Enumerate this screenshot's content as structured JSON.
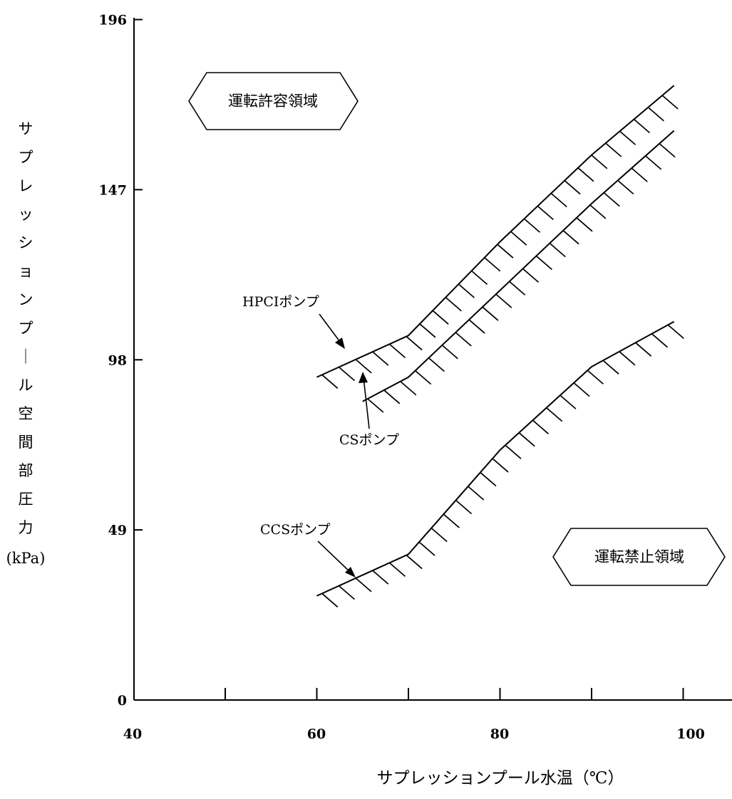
{
  "chart_data": {
    "type": "line",
    "title": "",
    "xlabel": "サプレッションプール水温（℃）",
    "ylabel_chars": [
      "サ",
      "プ",
      "レ",
      "ッ",
      "シ",
      "ョ",
      "ン",
      "プ",
      "｜",
      "ル",
      "空",
      "間",
      "部",
      "圧",
      "力"
    ],
    "ylabel_unit": "(kPa)",
    "xlim": [
      40,
      100
    ],
    "ylim": [
      0,
      196
    ],
    "x_ticks": [
      40,
      60,
      80,
      100
    ],
    "x_minor_ticks": [
      50,
      60,
      70,
      80,
      90,
      100
    ],
    "y_ticks": [
      0,
      49,
      98,
      147,
      196
    ],
    "grid": false,
    "series": [
      {
        "name": "HPCIポンプ",
        "x": [
          60,
          70,
          80,
          90,
          99
        ],
        "y": [
          93,
          105,
          132,
          157,
          177
        ]
      },
      {
        "name": "CSポンプ",
        "x": [
          65,
          70,
          80,
          90,
          99
        ],
        "y": [
          86,
          93,
          118,
          143,
          164
        ]
      },
      {
        "name": "CCSポンプ",
        "x": [
          60,
          70,
          80,
          90,
          99
        ],
        "y": [
          30,
          42,
          72,
          96,
          109
        ]
      }
    ],
    "annotations": [
      {
        "text": "運転許容領域"
      },
      {
        "text": "運転禁止領域"
      }
    ]
  }
}
